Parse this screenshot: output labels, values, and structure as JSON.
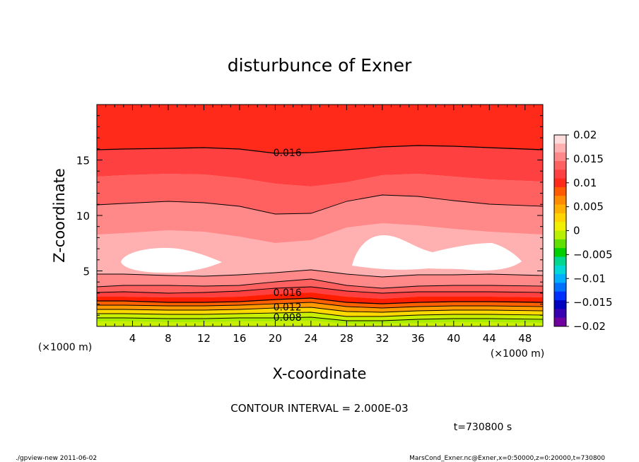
{
  "chart_data": {
    "type": "contour",
    "title": "disturbunce of Exner",
    "xlabel": "X-coordinate",
    "ylabel": "Z-coordinate",
    "x_unit_left": "(×1000 m)",
    "x_unit_right": "(×1000 m)",
    "xlim": [
      0,
      50
    ],
    "ylim": [
      0,
      20
    ],
    "x_ticks": [
      4,
      8,
      12,
      16,
      20,
      24,
      28,
      32,
      36,
      40,
      44,
      48
    ],
    "y_ticks": [
      5,
      10,
      15
    ],
    "colorbar": {
      "labels": [
        "0.02",
        "0.015",
        "0.01",
        "0.005",
        "0",
        "−0.005",
        "−0.01",
        "−0.015",
        "−0.02"
      ],
      "colors": [
        "#ffdcdc",
        "#ffb0b0",
        "#ff8888",
        "#ff6060",
        "#ff4040",
        "#ff2a1a",
        "#ff5a00",
        "#ff8c00",
        "#ffb000",
        "#ffd400",
        "#f0f000",
        "#b8f000",
        "#60e000",
        "#00d000",
        "#00d890",
        "#00d8d8",
        "#00b0ff",
        "#0070ff",
        "#0030ff",
        "#0000c0",
        "#3800b0",
        "#7000a0"
      ]
    },
    "contour_labels": [
      {
        "text": "0.016",
        "value": 0.016,
        "x_km": 22,
        "z_km": 15.6
      },
      {
        "text": "0.016",
        "value": 0.016,
        "x_km": 22,
        "z_km": 3.0
      },
      {
        "text": "0.012",
        "value": 0.012,
        "x_km": 22,
        "z_km": 1.7
      },
      {
        "text": "0.008",
        "value": 0.008,
        "x_km": 22,
        "z_km": 0.75
      }
    ],
    "contour_interval_text": "CONTOUR INTERVAL = 2.000E-03",
    "time_text": "t=730800 s",
    "footer_left": "./gpview-new   2011-06-02",
    "footer_right": "MarsCond_Exner.nc@Exner,x=0:50000,z=0:20000,t=730800",
    "colors": {
      "bg": "#ffffff",
      "band_top": "#ff2a1a",
      "band_2": "#ff4040",
      "band_3": "#ff6060",
      "band_4": "#ff8888",
      "band_5": "#ffb0b0",
      "band_6": "#ffdcdc",
      "blob": "#ffffff",
      "low_red": "#ff1e00",
      "low_orange": "#ff6000",
      "low_orange2": "#ff9a00",
      "low_yellow": "#ffd800",
      "low_lime": "#c8f000"
    }
  }
}
